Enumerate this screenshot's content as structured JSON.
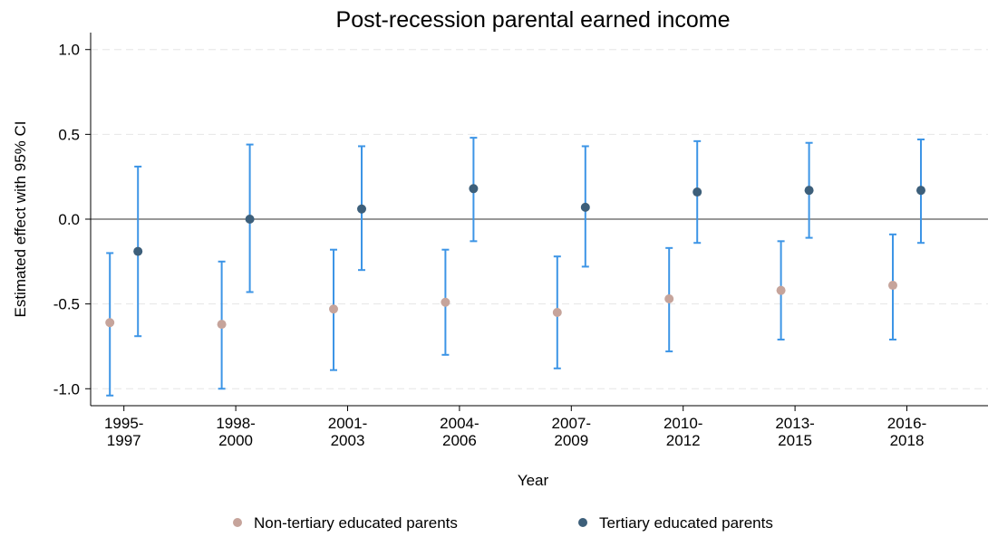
{
  "chart_data": {
    "type": "errorbar",
    "title": "Post-recession parental earned income",
    "x_label": "Year",
    "y_label": "Estimated effect with 95% CI",
    "categories": [
      [
        "1995-",
        "1997"
      ],
      [
        "1998-",
        "2000"
      ],
      [
        "2001-",
        "2003"
      ],
      [
        "2004-",
        "2006"
      ],
      [
        "2007-",
        "2009"
      ],
      [
        "2010-",
        "2012"
      ],
      [
        "2013-",
        "2015"
      ],
      [
        "2016-",
        "2018"
      ]
    ],
    "series": [
      {
        "name": "Non-tertiary educated parents",
        "color": "#c6a49b",
        "values": [
          -0.61,
          -0.62,
          -0.53,
          -0.49,
          -0.55,
          -0.47,
          -0.42,
          -0.39
        ],
        "lower": [
          -1.04,
          -1.0,
          -0.89,
          -0.8,
          -0.88,
          -0.78,
          -0.71,
          -0.71
        ],
        "upper": [
          -0.2,
          -0.25,
          -0.18,
          -0.18,
          -0.22,
          -0.17,
          -0.13,
          -0.09
        ]
      },
      {
        "name": "Tertiary educated parents",
        "color": "#3d5f7a",
        "values": [
          -0.19,
          0.0,
          0.06,
          0.18,
          0.07,
          0.16,
          0.17,
          0.17
        ],
        "lower": [
          -0.69,
          -0.43,
          -0.3,
          -0.13,
          -0.28,
          -0.14,
          -0.11,
          -0.14
        ],
        "upper": [
          0.31,
          0.44,
          0.43,
          0.48,
          0.43,
          0.46,
          0.45,
          0.47
        ]
      }
    ],
    "errorbar_color": "#3d95e6",
    "reference_line": 0,
    "ylim": [
      -1.1,
      1.1
    ],
    "yticks": [
      {
        "value": -1,
        "label": "-1.0"
      },
      -0.5,
      {
        "value": 0,
        "label": "0.0"
      },
      0.5,
      {
        "value": 1,
        "label": "1.0"
      }
    ],
    "grid": true,
    "legend": "bottom"
  }
}
